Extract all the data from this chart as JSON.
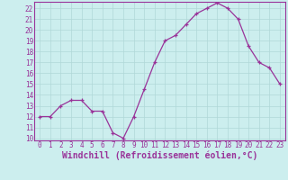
{
  "x": [
    0,
    1,
    2,
    3,
    4,
    5,
    6,
    7,
    8,
    9,
    10,
    11,
    12,
    13,
    14,
    15,
    16,
    17,
    18,
    19,
    20,
    21,
    22,
    23
  ],
  "y": [
    12,
    12,
    13,
    13.5,
    13.5,
    12.5,
    12.5,
    10.5,
    10,
    12,
    14.5,
    17,
    19,
    19.5,
    20.5,
    21.5,
    22,
    22.5,
    22,
    21,
    18.5,
    17,
    16.5,
    15
  ],
  "line_color": "#993399",
  "marker": "+",
  "background_color": "#cceeee",
  "grid_color": "#b0d8d8",
  "xlabel": "Windchill (Refroidissement éolien,°C)",
  "xlim": [
    -0.5,
    23.5
  ],
  "ylim": [
    9.8,
    22.6
  ],
  "yticks": [
    10,
    11,
    12,
    13,
    14,
    15,
    16,
    17,
    18,
    19,
    20,
    21,
    22
  ],
  "xticks": [
    0,
    1,
    2,
    3,
    4,
    5,
    6,
    7,
    8,
    9,
    10,
    11,
    12,
    13,
    14,
    15,
    16,
    17,
    18,
    19,
    20,
    21,
    22,
    23
  ],
  "tick_fontsize": 5.5,
  "xlabel_fontsize": 7.0,
  "line_width": 0.9,
  "marker_size": 3.5
}
